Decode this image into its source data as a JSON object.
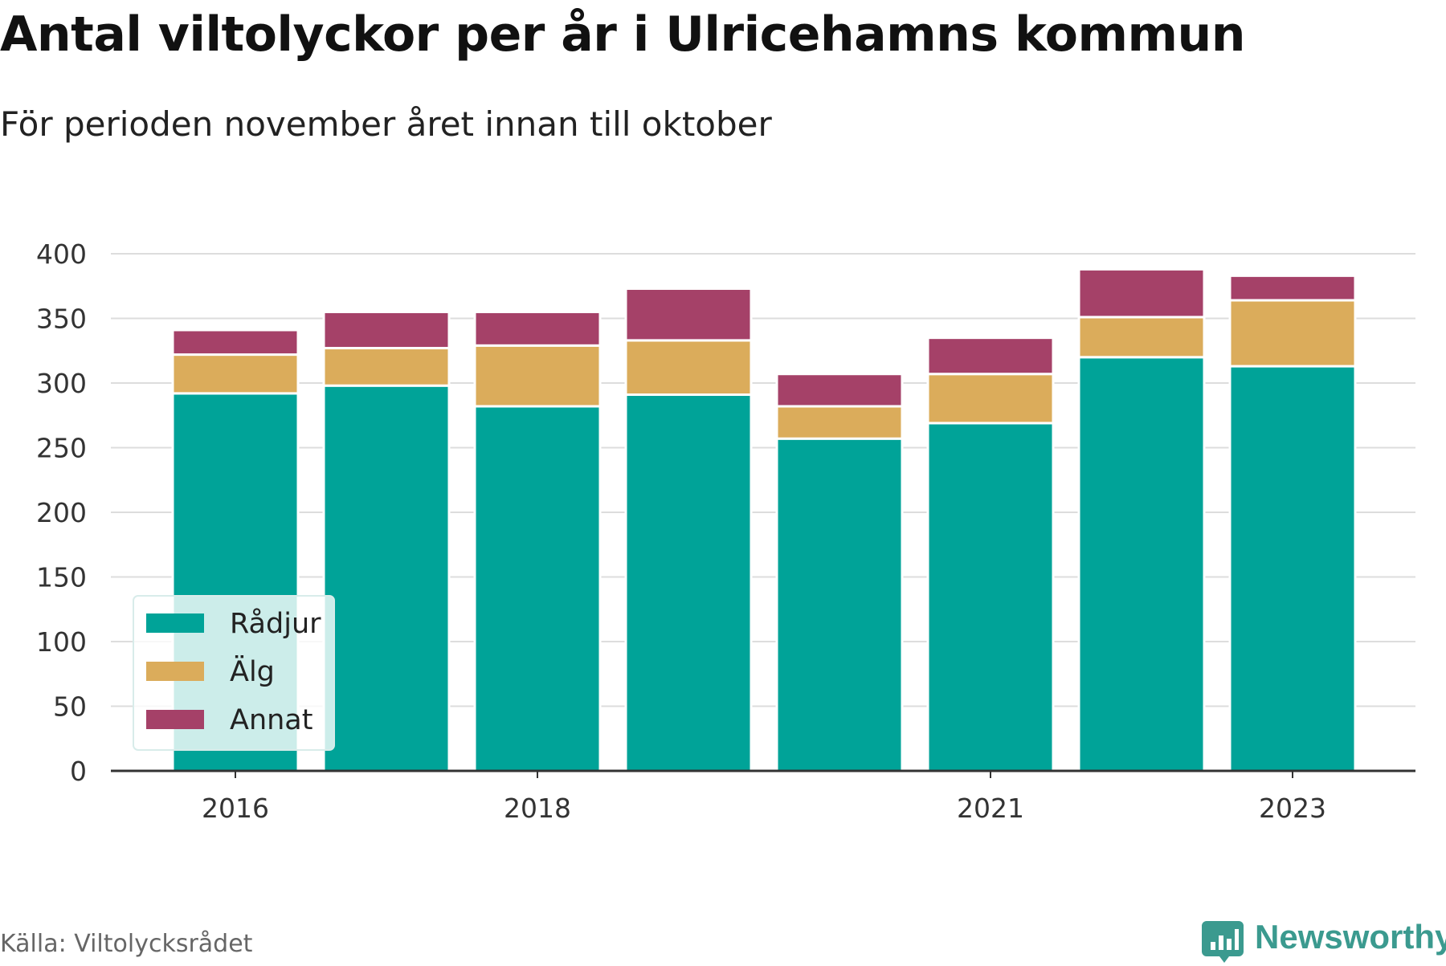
{
  "title": "Antal viltolyckor per år i Ulricehamns kommun",
  "subtitle": "För perioden november året innan till oktober",
  "source": "Källa: Viltolycksrådet",
  "brand": {
    "name": "Newsworthy",
    "icon": "bar-chart-speech-bubble-icon",
    "color": "#3b9a8f"
  },
  "chart_data": {
    "type": "bar",
    "stacked": true,
    "x": [
      2016,
      2017,
      2018,
      2019,
      2020,
      2021,
      2022,
      2023
    ],
    "x_ticks": [
      "2016",
      "2018",
      "2021",
      "2023"
    ],
    "series": [
      {
        "name": "Rådjur",
        "color": "#00a398",
        "values": [
          292,
          298,
          282,
          291,
          257,
          269,
          320,
          313
        ]
      },
      {
        "name": "Älg",
        "color": "#dbac5b",
        "values": [
          30,
          29,
          47,
          42,
          25,
          38,
          31,
          51
        ]
      },
      {
        "name": "Annat",
        "color": "#a54168",
        "values": [
          19,
          28,
          26,
          40,
          25,
          28,
          37,
          19
        ]
      }
    ],
    "y_ticks": [
      0,
      50,
      100,
      150,
      200,
      250,
      300,
      350,
      400
    ],
    "ylim": [
      0,
      400
    ],
    "grid": true,
    "legend_position": "bottom-left"
  }
}
